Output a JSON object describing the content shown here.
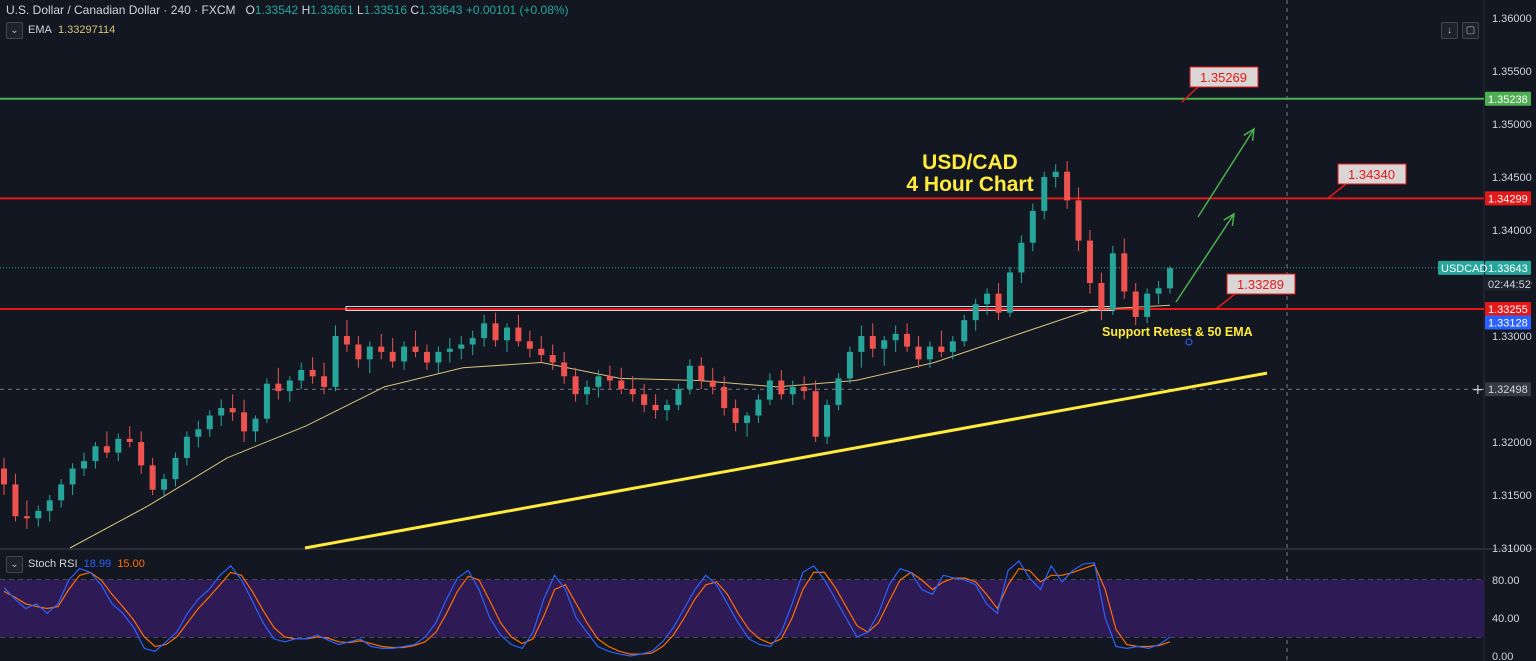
{
  "header": {
    "symbol": "U.S. Dollar / Canadian Dollar",
    "interval": "240",
    "source": "FXCM",
    "o_label": "O",
    "o_value": "1.33542",
    "h_label": "H",
    "h_value": "1.33661",
    "l_label": "L",
    "l_value": "1.33516",
    "c_label": "C",
    "c_value": "1.33643",
    "change": "+0.00101 (+0.08%)",
    "ema_label": "EMA",
    "ema_value": "1.33297114",
    "stoch_label": "Stoch RSI",
    "stoch_k": "18.99",
    "stoch_d": "15.00"
  },
  "colors": {
    "background": "#131722",
    "up": "#26a69a",
    "down": "#ef5350",
    "resistance": "#e61919",
    "target_line": "#4caf50",
    "trend": "#ffeb3b",
    "ema": "#d9c37a",
    "k_line": "#2962ff",
    "d_line": "#ff6d00",
    "rsi_band": "#2e1a55"
  },
  "chart_data": {
    "type": "candlestick",
    "title": "USD/CAD\n4 Hour Chart",
    "ylim": [
      1.31,
      1.3617
    ],
    "yticks": [
      "1.36000",
      "1.35500",
      "1.35000",
      "1.34500",
      "1.34000",
      "1.33500",
      "1.33000",
      "1.32000",
      "1.31500",
      "1.31000"
    ],
    "candles": [
      [
        1.3175,
        1.3185,
        1.315,
        1.316
      ],
      [
        1.316,
        1.317,
        1.3125,
        1.313
      ],
      [
        1.313,
        1.3145,
        1.3118,
        1.3128
      ],
      [
        1.3128,
        1.314,
        1.312,
        1.3135
      ],
      [
        1.3135,
        1.315,
        1.3125,
        1.3145
      ],
      [
        1.3145,
        1.3165,
        1.3138,
        1.316
      ],
      [
        1.316,
        1.318,
        1.315,
        1.3175
      ],
      [
        1.3175,
        1.319,
        1.3168,
        1.3182
      ],
      [
        1.3182,
        1.32,
        1.3175,
        1.3196
      ],
      [
        1.3196,
        1.321,
        1.3185,
        1.319
      ],
      [
        1.319,
        1.3208,
        1.3182,
        1.3203
      ],
      [
        1.3203,
        1.3215,
        1.3195,
        1.32
      ],
      [
        1.32,
        1.321,
        1.317,
        1.3178
      ],
      [
        1.3178,
        1.3185,
        1.315,
        1.3155
      ],
      [
        1.3155,
        1.317,
        1.3148,
        1.3165
      ],
      [
        1.3165,
        1.319,
        1.3158,
        1.3185
      ],
      [
        1.3185,
        1.321,
        1.3178,
        1.3205
      ],
      [
        1.3205,
        1.322,
        1.3195,
        1.3212
      ],
      [
        1.3212,
        1.323,
        1.3205,
        1.3225
      ],
      [
        1.3225,
        1.324,
        1.3215,
        1.3232
      ],
      [
        1.3232,
        1.3245,
        1.322,
        1.3228
      ],
      [
        1.3228,
        1.324,
        1.32,
        1.321
      ],
      [
        1.321,
        1.3225,
        1.32,
        1.3222
      ],
      [
        1.3222,
        1.326,
        1.3218,
        1.3255
      ],
      [
        1.3255,
        1.327,
        1.324,
        1.3248
      ],
      [
        1.3248,
        1.3262,
        1.3238,
        1.3258
      ],
      [
        1.3258,
        1.3275,
        1.325,
        1.3268
      ],
      [
        1.3268,
        1.328,
        1.3255,
        1.3262
      ],
      [
        1.3262,
        1.3275,
        1.3245,
        1.3252
      ],
      [
        1.3252,
        1.331,
        1.3248,
        1.33
      ],
      [
        1.33,
        1.3315,
        1.3285,
        1.3292
      ],
      [
        1.3292,
        1.33,
        1.327,
        1.3278
      ],
      [
        1.3278,
        1.3295,
        1.3265,
        1.329
      ],
      [
        1.329,
        1.3302,
        1.3278,
        1.3285
      ],
      [
        1.3285,
        1.3298,
        1.327,
        1.3276
      ],
      [
        1.3276,
        1.3295,
        1.3268,
        1.329
      ],
      [
        1.329,
        1.3305,
        1.328,
        1.3285
      ],
      [
        1.3285,
        1.3292,
        1.3268,
        1.3275
      ],
      [
        1.3275,
        1.329,
        1.3265,
        1.3285
      ],
      [
        1.3285,
        1.3298,
        1.3275,
        1.3288
      ],
      [
        1.3288,
        1.33,
        1.3278,
        1.3292
      ],
      [
        1.3292,
        1.3305,
        1.3282,
        1.3298
      ],
      [
        1.3298,
        1.332,
        1.329,
        1.3312
      ],
      [
        1.3312,
        1.3322,
        1.329,
        1.3296
      ],
      [
        1.3296,
        1.3312,
        1.3285,
        1.3308
      ],
      [
        1.3308,
        1.332,
        1.329,
        1.3295
      ],
      [
        1.3295,
        1.3305,
        1.328,
        1.3288
      ],
      [
        1.3288,
        1.33,
        1.3275,
        1.3282
      ],
      [
        1.3282,
        1.3292,
        1.3268,
        1.3275
      ],
      [
        1.3275,
        1.3285,
        1.3255,
        1.3262
      ],
      [
        1.3262,
        1.327,
        1.3238,
        1.3245
      ],
      [
        1.3245,
        1.3258,
        1.3235,
        1.3252
      ],
      [
        1.3252,
        1.3268,
        1.3242,
        1.3262
      ],
      [
        1.3262,
        1.3272,
        1.325,
        1.3258
      ],
      [
        1.3258,
        1.327,
        1.3245,
        1.325
      ],
      [
        1.325,
        1.3262,
        1.3238,
        1.3245
      ],
      [
        1.3245,
        1.3255,
        1.3228,
        1.3235
      ],
      [
        1.3235,
        1.3245,
        1.3222,
        1.323
      ],
      [
        1.323,
        1.324,
        1.322,
        1.3235
      ],
      [
        1.3235,
        1.3255,
        1.323,
        1.325
      ],
      [
        1.325,
        1.3278,
        1.3245,
        1.3272
      ],
      [
        1.3272,
        1.328,
        1.325,
        1.3258
      ],
      [
        1.3258,
        1.327,
        1.3245,
        1.3252
      ],
      [
        1.3252,
        1.3262,
        1.3225,
        1.3232
      ],
      [
        1.3232,
        1.324,
        1.321,
        1.3218
      ],
      [
        1.3218,
        1.3228,
        1.3205,
        1.3225
      ],
      [
        1.3225,
        1.3245,
        1.3218,
        1.324
      ],
      [
        1.324,
        1.3265,
        1.3235,
        1.3258
      ],
      [
        1.3258,
        1.3268,
        1.324,
        1.3245
      ],
      [
        1.3245,
        1.3258,
        1.3235,
        1.3252
      ],
      [
        1.3252,
        1.3262,
        1.324,
        1.3248
      ],
      [
        1.3248,
        1.3258,
        1.32,
        1.3205
      ],
      [
        1.3205,
        1.324,
        1.3198,
        1.3235
      ],
      [
        1.3235,
        1.3265,
        1.323,
        1.326
      ],
      [
        1.326,
        1.329,
        1.3255,
        1.3285
      ],
      [
        1.3285,
        1.331,
        1.327,
        1.33
      ],
      [
        1.33,
        1.3312,
        1.328,
        1.3288
      ],
      [
        1.3288,
        1.33,
        1.3272,
        1.3296
      ],
      [
        1.3296,
        1.331,
        1.3285,
        1.3302
      ],
      [
        1.3302,
        1.3312,
        1.3285,
        1.329
      ],
      [
        1.329,
        1.33,
        1.327,
        1.3278
      ],
      [
        1.3278,
        1.3295,
        1.327,
        1.329
      ],
      [
        1.329,
        1.3305,
        1.328,
        1.3285
      ],
      [
        1.3285,
        1.33,
        1.3278,
        1.3295
      ],
      [
        1.3295,
        1.332,
        1.329,
        1.3315
      ],
      [
        1.3315,
        1.3335,
        1.3305,
        1.333
      ],
      [
        1.333,
        1.3345,
        1.332,
        1.334
      ],
      [
        1.334,
        1.335,
        1.3315,
        1.3322
      ],
      [
        1.3322,
        1.3365,
        1.3318,
        1.336
      ],
      [
        1.336,
        1.3395,
        1.335,
        1.3388
      ],
      [
        1.3388,
        1.3425,
        1.338,
        1.3418
      ],
      [
        1.3418,
        1.3455,
        1.341,
        1.345
      ],
      [
        1.345,
        1.3462,
        1.344,
        1.3455
      ],
      [
        1.3455,
        1.3465,
        1.342,
        1.3428
      ],
      [
        1.3428,
        1.344,
        1.338,
        1.339
      ],
      [
        1.339,
        1.34,
        1.334,
        1.335
      ],
      [
        1.335,
        1.336,
        1.3315,
        1.3325
      ],
      [
        1.3325,
        1.3385,
        1.332,
        1.3378
      ],
      [
        1.3378,
        1.3392,
        1.3335,
        1.3342
      ],
      [
        1.3342,
        1.335,
        1.331,
        1.3318
      ],
      [
        1.3318,
        1.3345,
        1.3312,
        1.334
      ],
      [
        1.334,
        1.3352,
        1.333,
        1.3345
      ],
      [
        1.3345,
        1.3366,
        1.334,
        1.3364
      ]
    ],
    "ema50": [
      1.31,
      1.314,
      1.3185,
      1.3215,
      1.3252,
      1.327,
      1.3275,
      1.326,
      1.3258,
      1.3252,
      1.3258,
      1.3275,
      1.33,
      1.3325,
      1.3329
    ],
    "lines": [
      {
        "price": 1.35238,
        "label": "1.35238",
        "color": "#4caf50",
        "callout": "1.35269"
      },
      {
        "price": 1.34299,
        "label": "1.34299",
        "color": "#e61919",
        "callout": "1.34340"
      },
      {
        "price": 1.33255,
        "label": "1.33255",
        "color": "#e61919",
        "callout": "1.33289"
      }
    ],
    "current": {
      "symbol": "USDCAD",
      "price": "1.33643",
      "countdown": "02:44:52"
    },
    "ema_tag": "1.33128",
    "crosshair_price": "1.32498",
    "annotation": "Support Retest & 50 EMA",
    "stoch": {
      "levels": [
        "80.00",
        "40.00",
        "0.00"
      ],
      "band": [
        20,
        80
      ],
      "k": [
        72,
        60,
        50,
        55,
        45,
        55,
        80,
        92,
        88,
        75,
        55,
        45,
        30,
        8,
        5,
        15,
        25,
        45,
        60,
        70,
        85,
        95,
        80,
        58,
        35,
        18,
        15,
        18,
        18,
        22,
        17,
        12,
        15,
        18,
        10,
        8,
        8,
        10,
        12,
        20,
        35,
        60,
        82,
        90,
        70,
        40,
        22,
        12,
        8,
        25,
        60,
        85,
        70,
        40,
        25,
        10,
        5,
        2,
        0,
        2,
        5,
        15,
        30,
        50,
        70,
        85,
        75,
        55,
        35,
        18,
        12,
        10,
        25,
        55,
        88,
        95,
        80,
        60,
        40,
        20,
        25,
        45,
        75,
        92,
        88,
        70,
        65,
        85,
        82,
        80,
        75,
        55,
        45,
        90,
        100,
        82,
        70,
        95,
        78,
        90,
        97,
        98,
        40,
        10,
        8,
        10,
        8,
        12,
        20
      ],
      "d": [
        68,
        62,
        55,
        52,
        50,
        52,
        70,
        85,
        88,
        80,
        65,
        52,
        38,
        20,
        10,
        12,
        20,
        35,
        50,
        62,
        75,
        88,
        85,
        68,
        48,
        30,
        20,
        18,
        18,
        20,
        19,
        15,
        14,
        16,
        13,
        10,
        9,
        9,
        11,
        15,
        25,
        45,
        68,
        84,
        80,
        58,
        35,
        20,
        13,
        18,
        42,
        70,
        75,
        55,
        35,
        18,
        10,
        5,
        2,
        2,
        3,
        10,
        22,
        40,
        60,
        75,
        78,
        65,
        45,
        28,
        18,
        13,
        18,
        40,
        70,
        88,
        88,
        72,
        52,
        32,
        25,
        35,
        58,
        80,
        88,
        80,
        70,
        78,
        82,
        82,
        78,
        65,
        50,
        75,
        92,
        90,
        78,
        85,
        85,
        88,
        92,
        96,
        70,
        28,
        12,
        10,
        10,
        11,
        15
      ]
    }
  }
}
